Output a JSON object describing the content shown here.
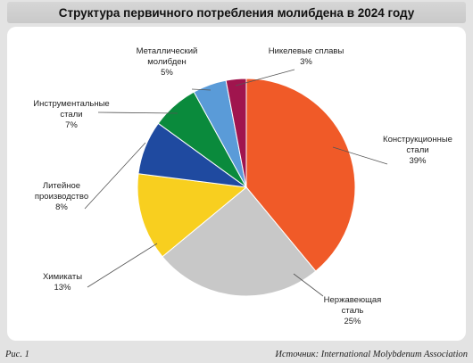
{
  "title": "Структура первичного потребления молибдена в 2024 году",
  "footer": {
    "figure": "Рис. 1",
    "source": "Источник: International Molybdenum Association"
  },
  "chart_data": {
    "type": "pie",
    "slices": [
      {
        "label_lines": [
          "Конструкционные",
          "стали"
        ],
        "value": 39,
        "value_text": "39%",
        "color": "#f05a28"
      },
      {
        "label_lines": [
          "Нержавеющая",
          "сталь"
        ],
        "value": 25,
        "value_text": "25%",
        "color": "#c8c8c8"
      },
      {
        "label_lines": [
          "Химикаты"
        ],
        "value": 13,
        "value_text": "13%",
        "color": "#f8cf1f"
      },
      {
        "label_lines": [
          "Литейное",
          "производство"
        ],
        "value": 8,
        "value_text": "8%",
        "color": "#1f4aa0"
      },
      {
        "label_lines": [
          "Инструментальные",
          "стали"
        ],
        "value": 7,
        "value_text": "7%",
        "color": "#0a8a3c"
      },
      {
        "label_lines": [
          "Металлический",
          "молибден"
        ],
        "value": 5,
        "value_text": "5%",
        "color": "#5a9bd8"
      },
      {
        "label_lines": [
          "Никелевые сплавы"
        ],
        "value": 3,
        "value_text": "3%",
        "color": "#a0154e"
      }
    ]
  }
}
